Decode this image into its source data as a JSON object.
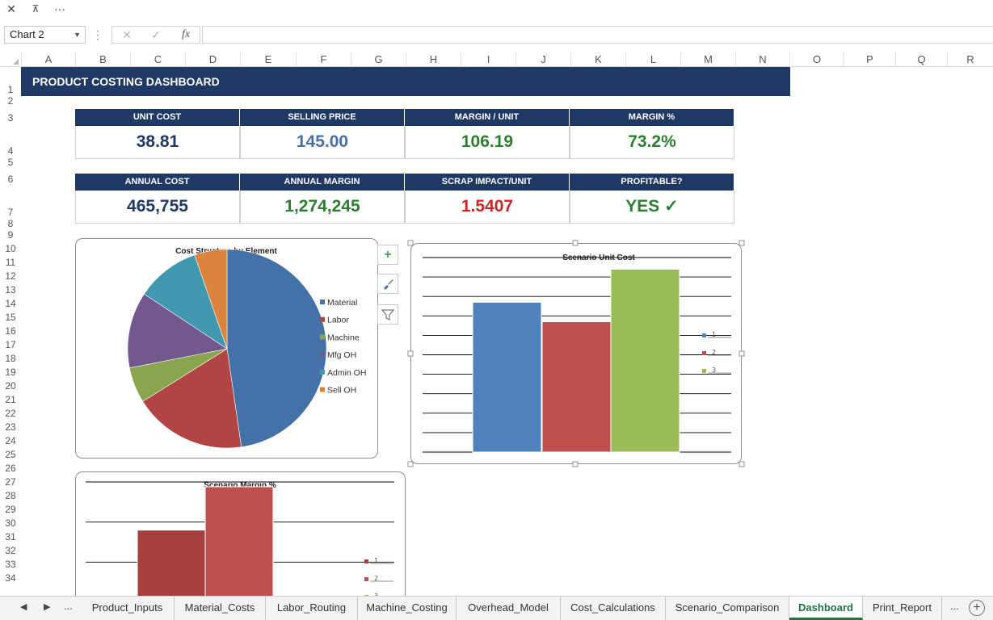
{
  "toolbar": {
    "close_glyph": "✕",
    "restore_glyph": "⊼",
    "more_glyph": "···"
  },
  "namebox": {
    "value": "Chart 2"
  },
  "formula_bar": {
    "cancel": "✕",
    "enter": "✓",
    "fx": "fx",
    "value": ""
  },
  "columns": [
    "A",
    "B",
    "C",
    "D",
    "E",
    "F",
    "G",
    "H",
    "I",
    "J",
    "K",
    "L",
    "M",
    "N",
    "O",
    "P",
    "Q",
    "R"
  ],
  "rows": [
    "1",
    "2",
    "3",
    "4",
    "5",
    "6",
    "7",
    "8",
    "9",
    "10",
    "11",
    "12",
    "13",
    "14",
    "15",
    "16",
    "17",
    "18",
    "19",
    "20",
    "21",
    "22",
    "23",
    "24",
    "25",
    "26",
    "27",
    "28",
    "29",
    "30",
    "31",
    "32",
    "33",
    "34"
  ],
  "dashboard": {
    "title": "PRODUCT COSTING DASHBOARD",
    "kpi_row1": [
      {
        "label": "UNIT COST",
        "value": "38.81",
        "color": "#1f3864"
      },
      {
        "label": "SELLING PRICE",
        "value": "145.00",
        "color": "#4a6fa5"
      },
      {
        "label": "MARGIN / UNIT",
        "value": "106.19",
        "color": "#2e7d32"
      },
      {
        "label": "MARGIN %",
        "value": "73.2%",
        "color": "#2e7d32"
      }
    ],
    "kpi_row2": [
      {
        "label": "ANNUAL COST",
        "value": "465,755",
        "color": "#1f3864"
      },
      {
        "label": "ANNUAL MARGIN",
        "value": "1,274,245",
        "color": "#2e7d32"
      },
      {
        "label": "SCRAP IMPACT/UNIT",
        "value": "1.5407",
        "color": "#c62828"
      },
      {
        "label": "PROFITABLE?",
        "value": "YES ✓",
        "color": "#2e7d32"
      }
    ]
  },
  "chart_buttons": {
    "add": "+",
    "style": "brush-icon",
    "filter": "filter-icon"
  },
  "chart_data": [
    {
      "type": "pie",
      "title": "Cost Structure by Element",
      "legend_position": "right",
      "categories": [
        "Material",
        "Labor",
        "Machine",
        "Mfg OH",
        "Admin OH",
        "Sell OH"
      ],
      "values": [
        47.7,
        18.4,
        5.8,
        12.4,
        10.4,
        5.3
      ],
      "colors": [
        "#4472a8",
        "#b04543",
        "#89a54e",
        "#71588f",
        "#4198af",
        "#db843d"
      ]
    },
    {
      "type": "bar",
      "title": "Scenario Unit Cost",
      "legend_position": "right",
      "categories": [
        "1",
        "2",
        "3"
      ],
      "values": [
        7.7,
        6.7,
        9.4
      ],
      "ylim": [
        0,
        10
      ],
      "grid": true,
      "colors": [
        "#4f81bd",
        "#c0504d",
        "#9bbb59"
      ]
    },
    {
      "type": "bar",
      "title": "Scenario Margin %",
      "legend_position": "right",
      "categories": [
        "1",
        "2",
        "3"
      ],
      "values": [
        1.5,
        2.4,
        0
      ],
      "ylim": [
        0,
        2.5
      ],
      "grid": true,
      "colors": [
        "#a5403e",
        "#c0504d",
        "#9bbb59"
      ]
    }
  ],
  "tabs": {
    "first_glyph": "◀",
    "next_glyph": "▶",
    "more": "...",
    "items": [
      "Product_Inputs",
      "Material_Costs",
      "Labor_Routing",
      "Machine_Costing",
      "Overhead_Model",
      "Cost_Calculations",
      "Scenario_Comparison",
      "Dashboard",
      "Print_Report"
    ],
    "active": "Dashboard",
    "trailing_more": "...",
    "add": "+"
  }
}
